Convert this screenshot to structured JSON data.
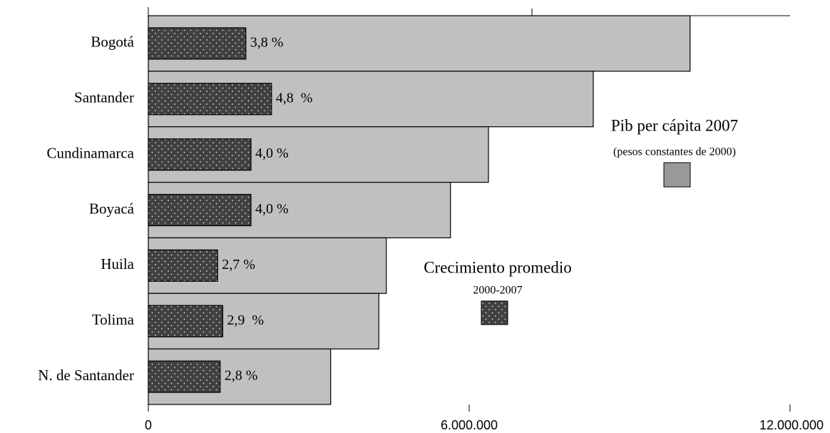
{
  "chart_data": {
    "type": "bar",
    "orientation": "horizontal",
    "categories": [
      "Bogotá",
      "Santander",
      "Cundinamarca",
      "Boyacá",
      "Huila",
      "Tolima",
      "N. de Santander"
    ],
    "series": [
      {
        "name": "Pib per cápita 2007",
        "unit_note": "(pesos constantes de 2000)",
        "color": "#c0c0c0",
        "legend_color": "#999999",
        "values": [
          10130000,
          8320000,
          6360000,
          5650000,
          4450000,
          4310000,
          3410000
        ]
      },
      {
        "name": "Crecimiento promedio",
        "unit_note": "2000-2007",
        "color": "#404040",
        "axis": "x2",
        "values": [
          3.8,
          4.8,
          4.0,
          4.0,
          2.7,
          2.9,
          2.8
        ],
        "value_labels": [
          "3,8 %",
          "4,8  %",
          "4,0 %",
          "4,0 %",
          "2,7 %",
          "2,9  %",
          "2,8 %"
        ]
      }
    ],
    "xlim": [
      0,
      12000000
    ],
    "xticks": [
      0,
      {
        "value": 6000000,
        "label": "6.000.000"
      },
      {
        "value": 12000000,
        "label": "12.000.000"
      }
    ],
    "x2lim": [
      0,
      25
    ]
  }
}
